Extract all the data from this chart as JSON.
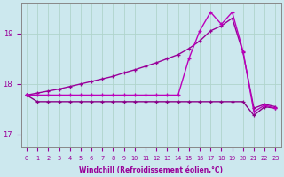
{
  "xlabel": "Windchill (Refroidissement éolien,°C)",
  "bg_color": "#cce8ee",
  "grid_color": "#b0d4cc",
  "line_color1": "#990099",
  "line_color2": "#bb00bb",
  "line_color3": "#880088",
  "ylim": [
    16.75,
    19.6
  ],
  "xlim": [
    -0.5,
    23.5
  ],
  "yticks": [
    17,
    18,
    19
  ],
  "xticks": [
    0,
    1,
    2,
    3,
    4,
    5,
    6,
    7,
    8,
    9,
    10,
    11,
    12,
    13,
    14,
    15,
    16,
    17,
    18,
    19,
    20,
    21,
    22,
    23
  ],
  "series1_x": [
    0,
    1,
    2,
    3,
    4,
    5,
    6,
    7,
    8,
    9,
    10,
    11,
    12,
    13,
    14,
    15,
    16,
    17,
    18,
    19,
    20,
    21,
    22,
    23
  ],
  "series1_y": [
    17.78,
    17.78,
    17.78,
    17.78,
    17.78,
    17.78,
    17.78,
    17.78,
    17.78,
    17.78,
    17.78,
    17.78,
    17.78,
    17.78,
    17.78,
    18.5,
    19.05,
    19.42,
    19.18,
    19.42,
    18.65,
    17.45,
    17.58,
    17.52
  ],
  "series2_x": [
    0,
    1,
    2,
    3,
    4,
    5,
    6,
    7,
    8,
    9,
    10,
    11,
    12,
    13,
    14,
    15,
    16,
    17,
    18,
    19,
    20,
    21,
    22,
    23
  ],
  "series2_y": [
    17.78,
    17.82,
    17.86,
    17.9,
    17.95,
    18.0,
    18.05,
    18.1,
    18.15,
    18.22,
    18.28,
    18.35,
    18.42,
    18.5,
    18.58,
    18.7,
    18.85,
    19.05,
    19.15,
    19.3,
    18.62,
    17.52,
    17.6,
    17.55
  ],
  "series3_x": [
    0,
    1,
    2,
    3,
    4,
    5,
    6,
    7,
    8,
    9,
    10,
    11,
    12,
    13,
    14,
    15,
    16,
    17,
    18,
    19,
    20,
    21,
    22,
    23
  ],
  "series3_y": [
    17.78,
    17.65,
    17.65,
    17.65,
    17.65,
    17.65,
    17.65,
    17.65,
    17.65,
    17.65,
    17.65,
    17.65,
    17.65,
    17.65,
    17.65,
    17.65,
    17.65,
    17.65,
    17.65,
    17.65,
    17.65,
    17.38,
    17.55,
    17.52
  ]
}
